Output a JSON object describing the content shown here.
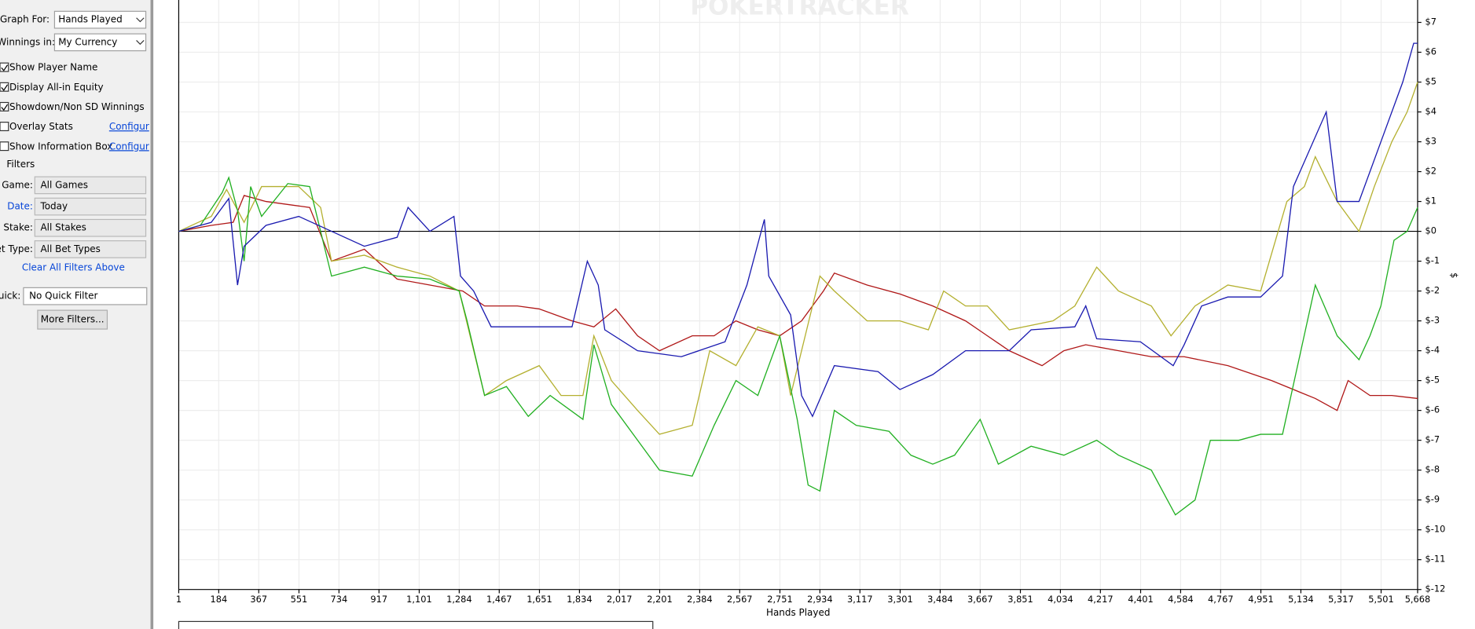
{
  "sidebar": {
    "graph_for_label": "Graph For:",
    "graph_for_value": "Hands Played",
    "winnings_label": "Winnings in:",
    "winnings_value": "My Currency",
    "checkboxes": [
      {
        "label": "Show Player Name",
        "checked": true
      },
      {
        "label": "Display All-in Equity",
        "checked": true
      },
      {
        "label": "Showdown/Non SD Winnings",
        "checked": true
      },
      {
        "label": "Overlay Stats",
        "checked": false,
        "link": "Configur"
      },
      {
        "label": "Show Information Box",
        "checked": false,
        "link": "Configur"
      }
    ],
    "filters_heading": "Filters",
    "filters": [
      {
        "label": "Game:",
        "value": "All Games"
      },
      {
        "label": "Date:",
        "value": "Today"
      },
      {
        "label": "Stake:",
        "value": "All Stakes"
      },
      {
        "label": "et Type:",
        "value": "All Bet Types"
      }
    ],
    "clear_link": "Clear All Filters Above",
    "quick_label": "uick:",
    "quick_value": "No Quick Filter",
    "more_button": "More Filters..."
  },
  "chart_data": {
    "type": "line",
    "watermark": "POKERTRACKER",
    "xlabel": "Hands Played",
    "ylabel": "$",
    "grid": true,
    "xlim": [
      1,
      5668
    ],
    "ylim": [
      -12,
      7.75
    ],
    "xticks": [
      1,
      184,
      367,
      551,
      734,
      917,
      {
        "value": 1101,
        "label": "1,101"
      },
      {
        "value": 1284,
        "label": "1,284"
      },
      {
        "value": 1467,
        "label": "1,467"
      },
      {
        "value": 1651,
        "label": "1,651"
      },
      {
        "value": 1834,
        "label": "1,834"
      },
      {
        "value": 2017,
        "label": "2,017"
      },
      {
        "value": 2201,
        "label": "2,201"
      },
      {
        "value": 2384,
        "label": "2,384"
      },
      {
        "value": 2567,
        "label": "2,567"
      },
      {
        "value": 2751,
        "label": "2,751"
      },
      {
        "value": 2934,
        "label": "2,934"
      },
      {
        "value": 3117,
        "label": "3,117"
      },
      {
        "value": 3301,
        "label": "3,301"
      },
      {
        "value": 3484,
        "label": "3,484"
      },
      {
        "value": 3667,
        "label": "3,667"
      },
      {
        "value": 3851,
        "label": "3,851"
      },
      {
        "value": 4034,
        "label": "4,034"
      },
      {
        "value": 4217,
        "label": "4,217"
      },
      {
        "value": 4401,
        "label": "4,401"
      },
      {
        "value": 4584,
        "label": "4,584"
      },
      {
        "value": 4767,
        "label": "4,767"
      },
      {
        "value": 4951,
        "label": "4,951"
      },
      {
        "value": 5134,
        "label": "5,134"
      },
      {
        "value": 5317,
        "label": "5,317"
      },
      {
        "value": 5501,
        "label": "5,501"
      },
      {
        "value": 5668,
        "label": "5,668"
      }
    ],
    "yticks": [
      {
        "value": 7,
        "label": "$7"
      },
      {
        "value": 6,
        "label": "$6"
      },
      {
        "value": 5,
        "label": "$5"
      },
      {
        "value": 4,
        "label": "$4"
      },
      {
        "value": 3,
        "label": "$3"
      },
      {
        "value": 2,
        "label": "$2"
      },
      {
        "value": 1,
        "label": "$1"
      },
      {
        "value": 0,
        "label": "$0"
      },
      {
        "value": -1,
        "label": "$-1"
      },
      {
        "value": -2,
        "label": "$-2"
      },
      {
        "value": -3,
        "label": "$-3"
      },
      {
        "value": -4,
        "label": "$-4"
      },
      {
        "value": -5,
        "label": "$-5"
      },
      {
        "value": -6,
        "label": "$-6"
      },
      {
        "value": -7,
        "label": "$-7"
      },
      {
        "value": -8,
        "label": "$-8"
      },
      {
        "value": -9,
        "label": "$-9"
      },
      {
        "value": -10,
        "label": "$-10"
      },
      {
        "value": -11,
        "label": "$-11"
      },
      {
        "value": -12,
        "label": "$-12"
      }
    ],
    "series": [
      {
        "color": "#b01818",
        "x": [
          1,
          150,
          250,
          300,
          400,
          600,
          700,
          850,
          1000,
          1150,
          1300,
          1400,
          1550,
          1650,
          1800,
          1900,
          2000,
          2100,
          2200,
          2350,
          2450,
          2550,
          2650,
          2750,
          2850,
          2950,
          3000,
          3150,
          3300,
          3450,
          3600,
          3700,
          3800,
          3950,
          4050,
          4150,
          4300,
          4450,
          4600,
          4800,
          5000,
          5200,
          5300,
          5350,
          5450,
          5550,
          5668
        ],
        "values": [
          0,
          0.2,
          0.3,
          1.2,
          1,
          0.8,
          -1,
          -0.6,
          -1.6,
          -1.8,
          -2,
          -2.5,
          -2.5,
          -2.6,
          -3,
          -3.2,
          -2.6,
          -3.5,
          -4,
          -3.5,
          -3.5,
          -3,
          -3.3,
          -3.5,
          -3,
          -2,
          -1.4,
          -1.8,
          -2.1,
          -2.5,
          -3,
          -3.5,
          -4,
          -4.5,
          -4,
          -3.8,
          -4,
          -4.2,
          -4.2,
          -4.5,
          -5,
          -5.6,
          -6,
          -5,
          -5.5,
          -5.5,
          -5.6
        ]
      },
      {
        "color": "#b4b030",
        "x": [
          1,
          150,
          220,
          300,
          380,
          550,
          650,
          700,
          850,
          1000,
          1150,
          1284,
          1400,
          1500,
          1650,
          1750,
          1850,
          1900,
          1980,
          2100,
          2200,
          2350,
          2430,
          2550,
          2650,
          2750,
          2800,
          2900,
          2934,
          3000,
          3150,
          3300,
          3430,
          3500,
          3600,
          3700,
          3800,
          4000,
          4100,
          4200,
          4300,
          4450,
          4540,
          4650,
          4800,
          4950,
          5070,
          5150,
          5200,
          5300,
          5400,
          5470,
          5550,
          5620,
          5668
        ],
        "values": [
          0,
          0.5,
          1.4,
          0.3,
          1.5,
          1.5,
          0.8,
          -1,
          -0.8,
          -1.2,
          -1.5,
          -2,
          -5.5,
          -5,
          -4.5,
          -5.5,
          -5.5,
          -3.5,
          -5,
          -6,
          -6.8,
          -6.5,
          -4,
          -4.5,
          -3.2,
          -3.5,
          -5.5,
          -2.5,
          -1.5,
          -2,
          -3,
          -3,
          -3.3,
          -2,
          -2.5,
          -2.5,
          -3.3,
          -3,
          -2.5,
          -1.2,
          -2,
          -2.5,
          -3.5,
          -2.5,
          -1.8,
          -2,
          1,
          1.5,
          2.5,
          1,
          0,
          1.5,
          3,
          4,
          5
        ]
      },
      {
        "color": "#22b022",
        "x": [
          1,
          100,
          200,
          230,
          270,
          300,
          330,
          380,
          500,
          600,
          700,
          850,
          1000,
          1150,
          1284,
          1320,
          1400,
          1500,
          1600,
          1700,
          1850,
          1900,
          1980,
          2100,
          2200,
          2350,
          2450,
          2550,
          2650,
          2750,
          2830,
          2880,
          2934,
          3000,
          3100,
          3250,
          3350,
          3450,
          3550,
          3667,
          3750,
          3900,
          4050,
          4200,
          4300,
          4450,
          4560,
          4650,
          4720,
          4850,
          4950,
          5050,
          5134,
          5200,
          5300,
          5400,
          5450,
          5500,
          5560,
          5620,
          5668
        ],
        "values": [
          0,
          0.2,
          1.3,
          1.8,
          0.7,
          -1,
          1.5,
          0.5,
          1.6,
          1.5,
          -1.5,
          -1.2,
          -1.5,
          -1.6,
          -2,
          -3,
          -5.5,
          -5.2,
          -6.2,
          -5.5,
          -6.3,
          -3.8,
          -5.8,
          -7,
          -8,
          -8.2,
          -6.5,
          -5,
          -5.5,
          -3.5,
          -6.3,
          -8.5,
          -8.7,
          -6,
          -6.5,
          -6.7,
          -7.5,
          -7.8,
          -7.5,
          -6.3,
          -7.8,
          -7.2,
          -7.5,
          -7,
          -7.5,
          -8,
          -9.5,
          -9,
          -7,
          -7,
          -6.8,
          -6.8,
          -4,
          -1.8,
          -3.5,
          -4.3,
          -3.5,
          -2.5,
          -0.3,
          0,
          0.8
        ]
      },
      {
        "color": "#1a1ab0",
        "x": [
          1,
          150,
          230,
          270,
          300,
          400,
          550,
          700,
          850,
          1000,
          1050,
          1150,
          1260,
          1290,
          1350,
          1430,
          1600,
          1800,
          1870,
          1920,
          1950,
          2100,
          2300,
          2500,
          2600,
          2680,
          2700,
          2800,
          2850,
          2900,
          3000,
          3200,
          3300,
          3450,
          3600,
          3800,
          3900,
          4100,
          4150,
          4200,
          4400,
          4550,
          4600,
          4680,
          4800,
          4950,
          5050,
          5100,
          5250,
          5300,
          5400,
          5500,
          5600,
          5650,
          5668
        ],
        "values": [
          0,
          0.3,
          1.1,
          -1.8,
          -0.5,
          0.2,
          0.5,
          0,
          -0.5,
          -0.2,
          0.8,
          0,
          0.5,
          -1.5,
          -2,
          -3.2,
          -3.2,
          -3.2,
          -1,
          -1.8,
          -3.3,
          -4,
          -4.2,
          -3.7,
          -1.8,
          0.4,
          -1.5,
          -2.8,
          -5.5,
          -6.2,
          -4.5,
          -4.7,
          -5.3,
          -4.8,
          -4,
          -4,
          -3.3,
          -3.2,
          -2.5,
          -3.6,
          -3.7,
          -4.5,
          -3.8,
          -2.5,
          -2.2,
          -2.2,
          -1.5,
          1.5,
          4,
          1,
          1,
          3,
          5,
          6.3,
          6.3
        ]
      }
    ]
  }
}
